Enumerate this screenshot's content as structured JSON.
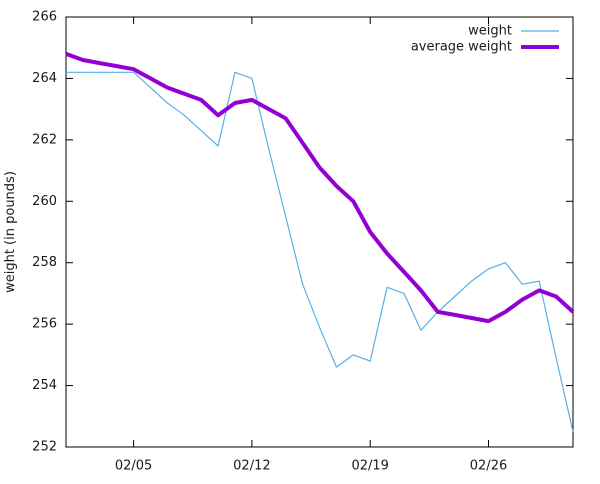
{
  "figure": {
    "background_color": "#ffffff",
    "axis_color": "#000000",
    "text_color": "#1a1a1a"
  },
  "chart_data": {
    "type": "line",
    "title": "",
    "xlabel": "",
    "ylabel": "weight (in pounds)",
    "ylim": [
      252,
      266
    ],
    "y_tick_labels": [
      "252",
      "254",
      "256",
      "258",
      "260",
      "262",
      "264",
      "266"
    ],
    "x_dates": [
      "02/01",
      "02/02",
      "02/03",
      "02/04",
      "02/05",
      "02/06",
      "02/07",
      "02/08",
      "02/09",
      "02/10",
      "02/11",
      "02/12",
      "02/13",
      "02/14",
      "02/15",
      "02/16",
      "02/17",
      "02/18",
      "02/19",
      "02/20",
      "02/21",
      "02/22",
      "02/23",
      "02/24",
      "02/25",
      "02/26",
      "02/27",
      "02/28",
      "03/01",
      "03/02",
      "03/03"
    ],
    "x_tick_labels": [
      "02/05",
      "02/12",
      "02/19",
      "02/26"
    ],
    "x_tick_indices": [
      4,
      11,
      18,
      25
    ],
    "grid": false,
    "legend_position": "top-right-inside",
    "series": [
      {
        "name": "weight",
        "color": "#58b0e6",
        "line_width": 1.2,
        "values": [
          264.2,
          264.2,
          264.2,
          264.2,
          264.2,
          263.7,
          263.2,
          262.8,
          262.3,
          261.8,
          264.2,
          264.0,
          261.7,
          259.5,
          257.3,
          255.9,
          254.6,
          255.0,
          254.8,
          257.2,
          257.0,
          255.8,
          256.4,
          256.9,
          257.4,
          257.8,
          258.0,
          257.3,
          257.4,
          254.9,
          252.5
        ]
      },
      {
        "name": "average weight",
        "color": "#9400d3",
        "line_width": 4,
        "values": [
          264.8,
          264.6,
          264.5,
          264.4,
          264.3,
          264.0,
          263.7,
          263.5,
          263.3,
          262.8,
          263.2,
          263.3,
          263.0,
          262.7,
          261.9,
          261.1,
          260.5,
          260.0,
          259.0,
          258.3,
          257.7,
          257.1,
          256.4,
          256.3,
          256.2,
          256.1,
          256.4,
          256.8,
          257.1,
          256.9,
          256.4
        ]
      }
    ]
  }
}
